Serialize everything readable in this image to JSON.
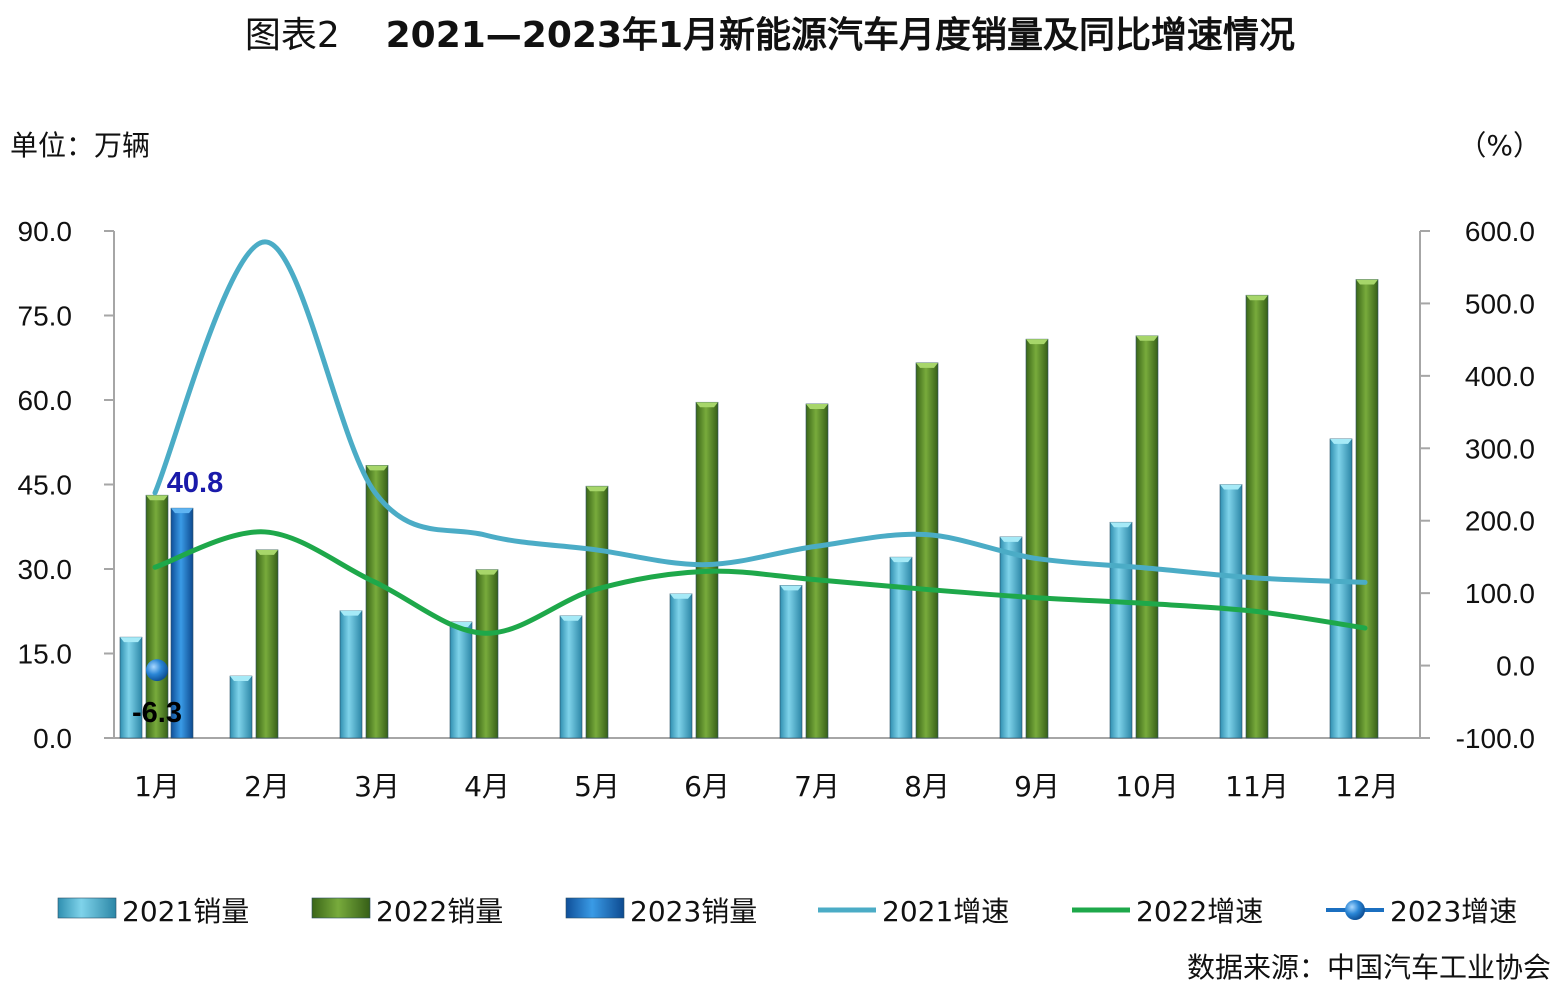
{
  "title": {
    "prefix": "图表2",
    "main": "2021—2023年1月新能源汽车月度销量及同比增速情况"
  },
  "unit_left": "单位：万辆",
  "unit_right": "（%）",
  "source": "数据来源：中国汽车工业协会",
  "colors": {
    "bar2021": "#4bb3cf",
    "bar2022": "#4f7f25",
    "bar2023": "#1b72c4",
    "line2021": "#4bacc6",
    "line2022": "#1ea84a",
    "marker2023": "#1b6fc0",
    "label2023": "#1a1aaa",
    "axis": "#a6a6a6"
  },
  "chart_data": {
    "type": "bar",
    "categories": [
      "1月",
      "2月",
      "3月",
      "4月",
      "5月",
      "6月",
      "7月",
      "8月",
      "9月",
      "10月",
      "11月",
      "12月"
    ],
    "y_left": {
      "ylim": [
        0,
        90
      ],
      "ticks": [
        "0.0",
        "15.0",
        "30.0",
        "45.0",
        "60.0",
        "75.0",
        "90.0"
      ]
    },
    "y_right": {
      "ylim": [
        -100,
        600
      ],
      "ticks": [
        "-100.0",
        "0.0",
        "100.0",
        "200.0",
        "300.0",
        "400.0",
        "500.0",
        "600.0"
      ]
    },
    "bars": [
      {
        "name": "2021销量",
        "values": [
          17.9,
          11.0,
          22.6,
          20.6,
          21.7,
          25.6,
          27.1,
          32.1,
          35.7,
          38.3,
          45.0,
          53.1
        ]
      },
      {
        "name": "2022销量",
        "values": [
          43.1,
          33.4,
          48.4,
          29.9,
          44.7,
          59.6,
          59.3,
          66.6,
          70.8,
          71.4,
          78.6,
          81.4
        ]
      },
      {
        "name": "2023销量",
        "values": [
          40.8
        ]
      }
    ],
    "lines": [
      {
        "name": "2021增速",
        "values": [
          238.5,
          584.9,
          238.9,
          180.3,
          160.0,
          139.3,
          164.4,
          180.9,
          148.1,
          134.9,
          121.1,
          114.9
        ]
      },
      {
        "name": "2022增速",
        "values": [
          135.7,
          184.5,
          115.1,
          44.6,
          104.9,
          130.1,
          118.6,
          105.3,
          93.8,
          85.8,
          75.0,
          51.8
        ]
      },
      {
        "name": "2023增速",
        "values": [
          -6.3
        ]
      }
    ],
    "data_labels": {
      "bar2023": "40.8",
      "line2023": "-6.3"
    },
    "legend": [
      "2021销量",
      "2022销量",
      "2023销量",
      "2021增速",
      "2022增速",
      "2023增速"
    ],
    "legend_position": "bottom"
  }
}
